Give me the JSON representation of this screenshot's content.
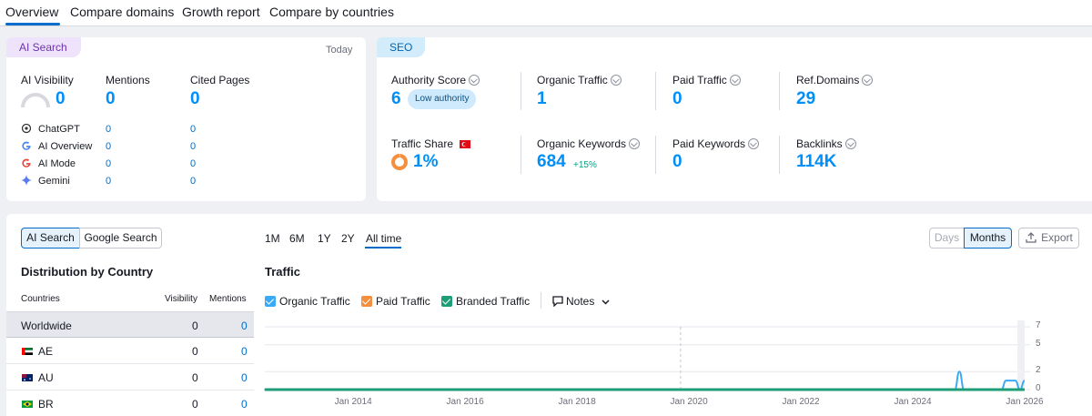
{
  "tabs": [
    "Overview",
    "Compare domains",
    "Growth report",
    "Compare by countries"
  ],
  "ai_card": {
    "pill": "AI Search",
    "date": "Today",
    "metrics": [
      {
        "label": "AI Visibility",
        "value": "0"
      },
      {
        "label": "Mentions",
        "value": "0"
      },
      {
        "label": "Cited Pages",
        "value": "0"
      }
    ],
    "engines": [
      {
        "name": "ChatGPT",
        "mentions": "0",
        "cited": "0"
      },
      {
        "name": "AI Overview",
        "mentions": "0",
        "cited": "0"
      },
      {
        "name": "AI Mode",
        "mentions": "0",
        "cited": "0"
      },
      {
        "name": "Gemini",
        "mentions": "0",
        "cited": "0"
      }
    ]
  },
  "seo_card": {
    "pill": "SEO",
    "authority": {
      "label": "Authority Score",
      "value": "6",
      "badge": "Low authority"
    },
    "organic_traffic": {
      "label": "Organic Traffic",
      "value": "1"
    },
    "paid_traffic": {
      "label": "Paid Traffic",
      "value": "0"
    },
    "ref_domains": {
      "label": "Ref.Domains",
      "value": "29"
    },
    "traffic_share": {
      "label": "Traffic Share",
      "value": "1%"
    },
    "organic_keywords": {
      "label": "Organic Keywords",
      "value": "684",
      "delta": "+15%"
    },
    "paid_keywords": {
      "label": "Paid Keywords",
      "value": "0"
    },
    "backlinks": {
      "label": "Backlinks",
      "value": "114K"
    }
  },
  "toggle": {
    "ai": "AI Search",
    "google": "Google Search"
  },
  "periods": [
    "1M",
    "6M",
    "1Y",
    "2Y",
    "All time"
  ],
  "granularity": {
    "days": "Days",
    "months": "Months"
  },
  "export_label": "Export",
  "distribution": {
    "title": "Distribution by Country",
    "headers": {
      "country": "Countries",
      "visibility": "Visibility",
      "mentions": "Mentions"
    },
    "rows": [
      {
        "country": "Worldwide",
        "visibility": "0",
        "mentions": "0"
      },
      {
        "country": "AE",
        "visibility": "0",
        "mentions": "0"
      },
      {
        "country": "AU",
        "visibility": "0",
        "mentions": "0"
      },
      {
        "country": "BR",
        "visibility": "0",
        "mentions": "0"
      }
    ]
  },
  "traffic": {
    "title": "Traffic",
    "legend": [
      "Organic Traffic",
      "Paid Traffic",
      "Branded Traffic"
    ],
    "notes_label": "Notes"
  },
  "colors": {
    "accent": "#006dca",
    "value_blue": "#008ff8",
    "organic": "#3aaaf5",
    "paid": "#f58f3d",
    "branded": "#1d9e76",
    "ai_pill": "#efe3fb",
    "seo_pill": "#d3ecfb"
  },
  "chart_data": {
    "type": "line",
    "x_ticks": [
      "Jan 2014",
      "Jan 2016",
      "Jan 2018",
      "Jan 2020",
      "Jan 2022",
      "Jan 2024",
      "Jan 2026"
    ],
    "y_ticks": [
      "7",
      "5",
      "2",
      "0"
    ],
    "ylim": [
      0,
      7
    ],
    "series": [
      {
        "name": "Organic Traffic",
        "color": "#3aaaf5",
        "points": [
          [
            "2012-06",
            0
          ],
          [
            "2024-10",
            0
          ],
          [
            "2024-11",
            2
          ],
          [
            "2024-12",
            0
          ],
          [
            "2025-08",
            0
          ],
          [
            "2025-09",
            1
          ],
          [
            "2025-10",
            1
          ],
          [
            "2025-11",
            1
          ],
          [
            "2025-12",
            0
          ],
          [
            "2026-01",
            1
          ]
        ]
      },
      {
        "name": "Branded Traffic",
        "color": "#1d9e76",
        "points": [
          [
            "2012-06",
            0
          ],
          [
            "2026-01",
            0
          ]
        ]
      }
    ]
  }
}
